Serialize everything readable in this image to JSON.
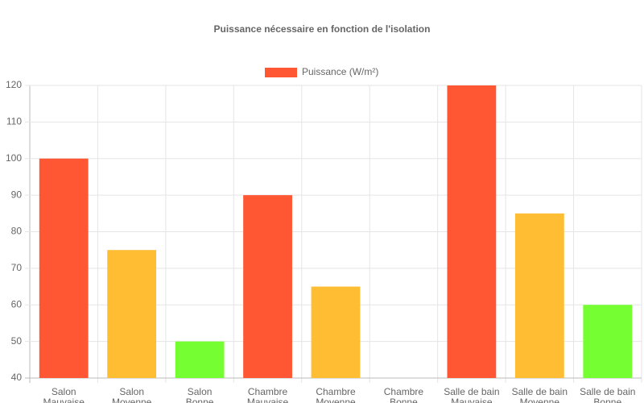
{
  "chart_data": {
    "type": "bar",
    "title": "Puissance nécessaire en fonction de l'isolation",
    "categories": [
      [
        "Salon",
        "Mauvaise"
      ],
      [
        "Salon",
        "Moyenne"
      ],
      [
        "Salon",
        "Bonne"
      ],
      [
        "Chambre",
        "Mauvaise"
      ],
      [
        "Chambre",
        "Moyenne"
      ],
      [
        "Chambre",
        "Bonne"
      ],
      [
        "Salle de bain",
        "Mauvaise"
      ],
      [
        "Salle de bain",
        "Moyenne"
      ],
      [
        "Salle de bain",
        "Bonne"
      ]
    ],
    "series": [
      {
        "name": "Puissance (W/m²)",
        "color": "#ff5733",
        "values": [
          100,
          75,
          50,
          90,
          65,
          40,
          120,
          85,
          60
        ],
        "colors": [
          "#ff5733",
          "#ffbd33",
          "#75ff33",
          "#ff5733",
          "#ffbd33",
          "#75ff33",
          "#ff5733",
          "#ffbd33",
          "#75ff33"
        ]
      }
    ],
    "ylim": [
      40,
      120
    ],
    "yticks": [
      40,
      50,
      60,
      70,
      80,
      90,
      100,
      110,
      120
    ],
    "grid": true,
    "legend": "top"
  }
}
